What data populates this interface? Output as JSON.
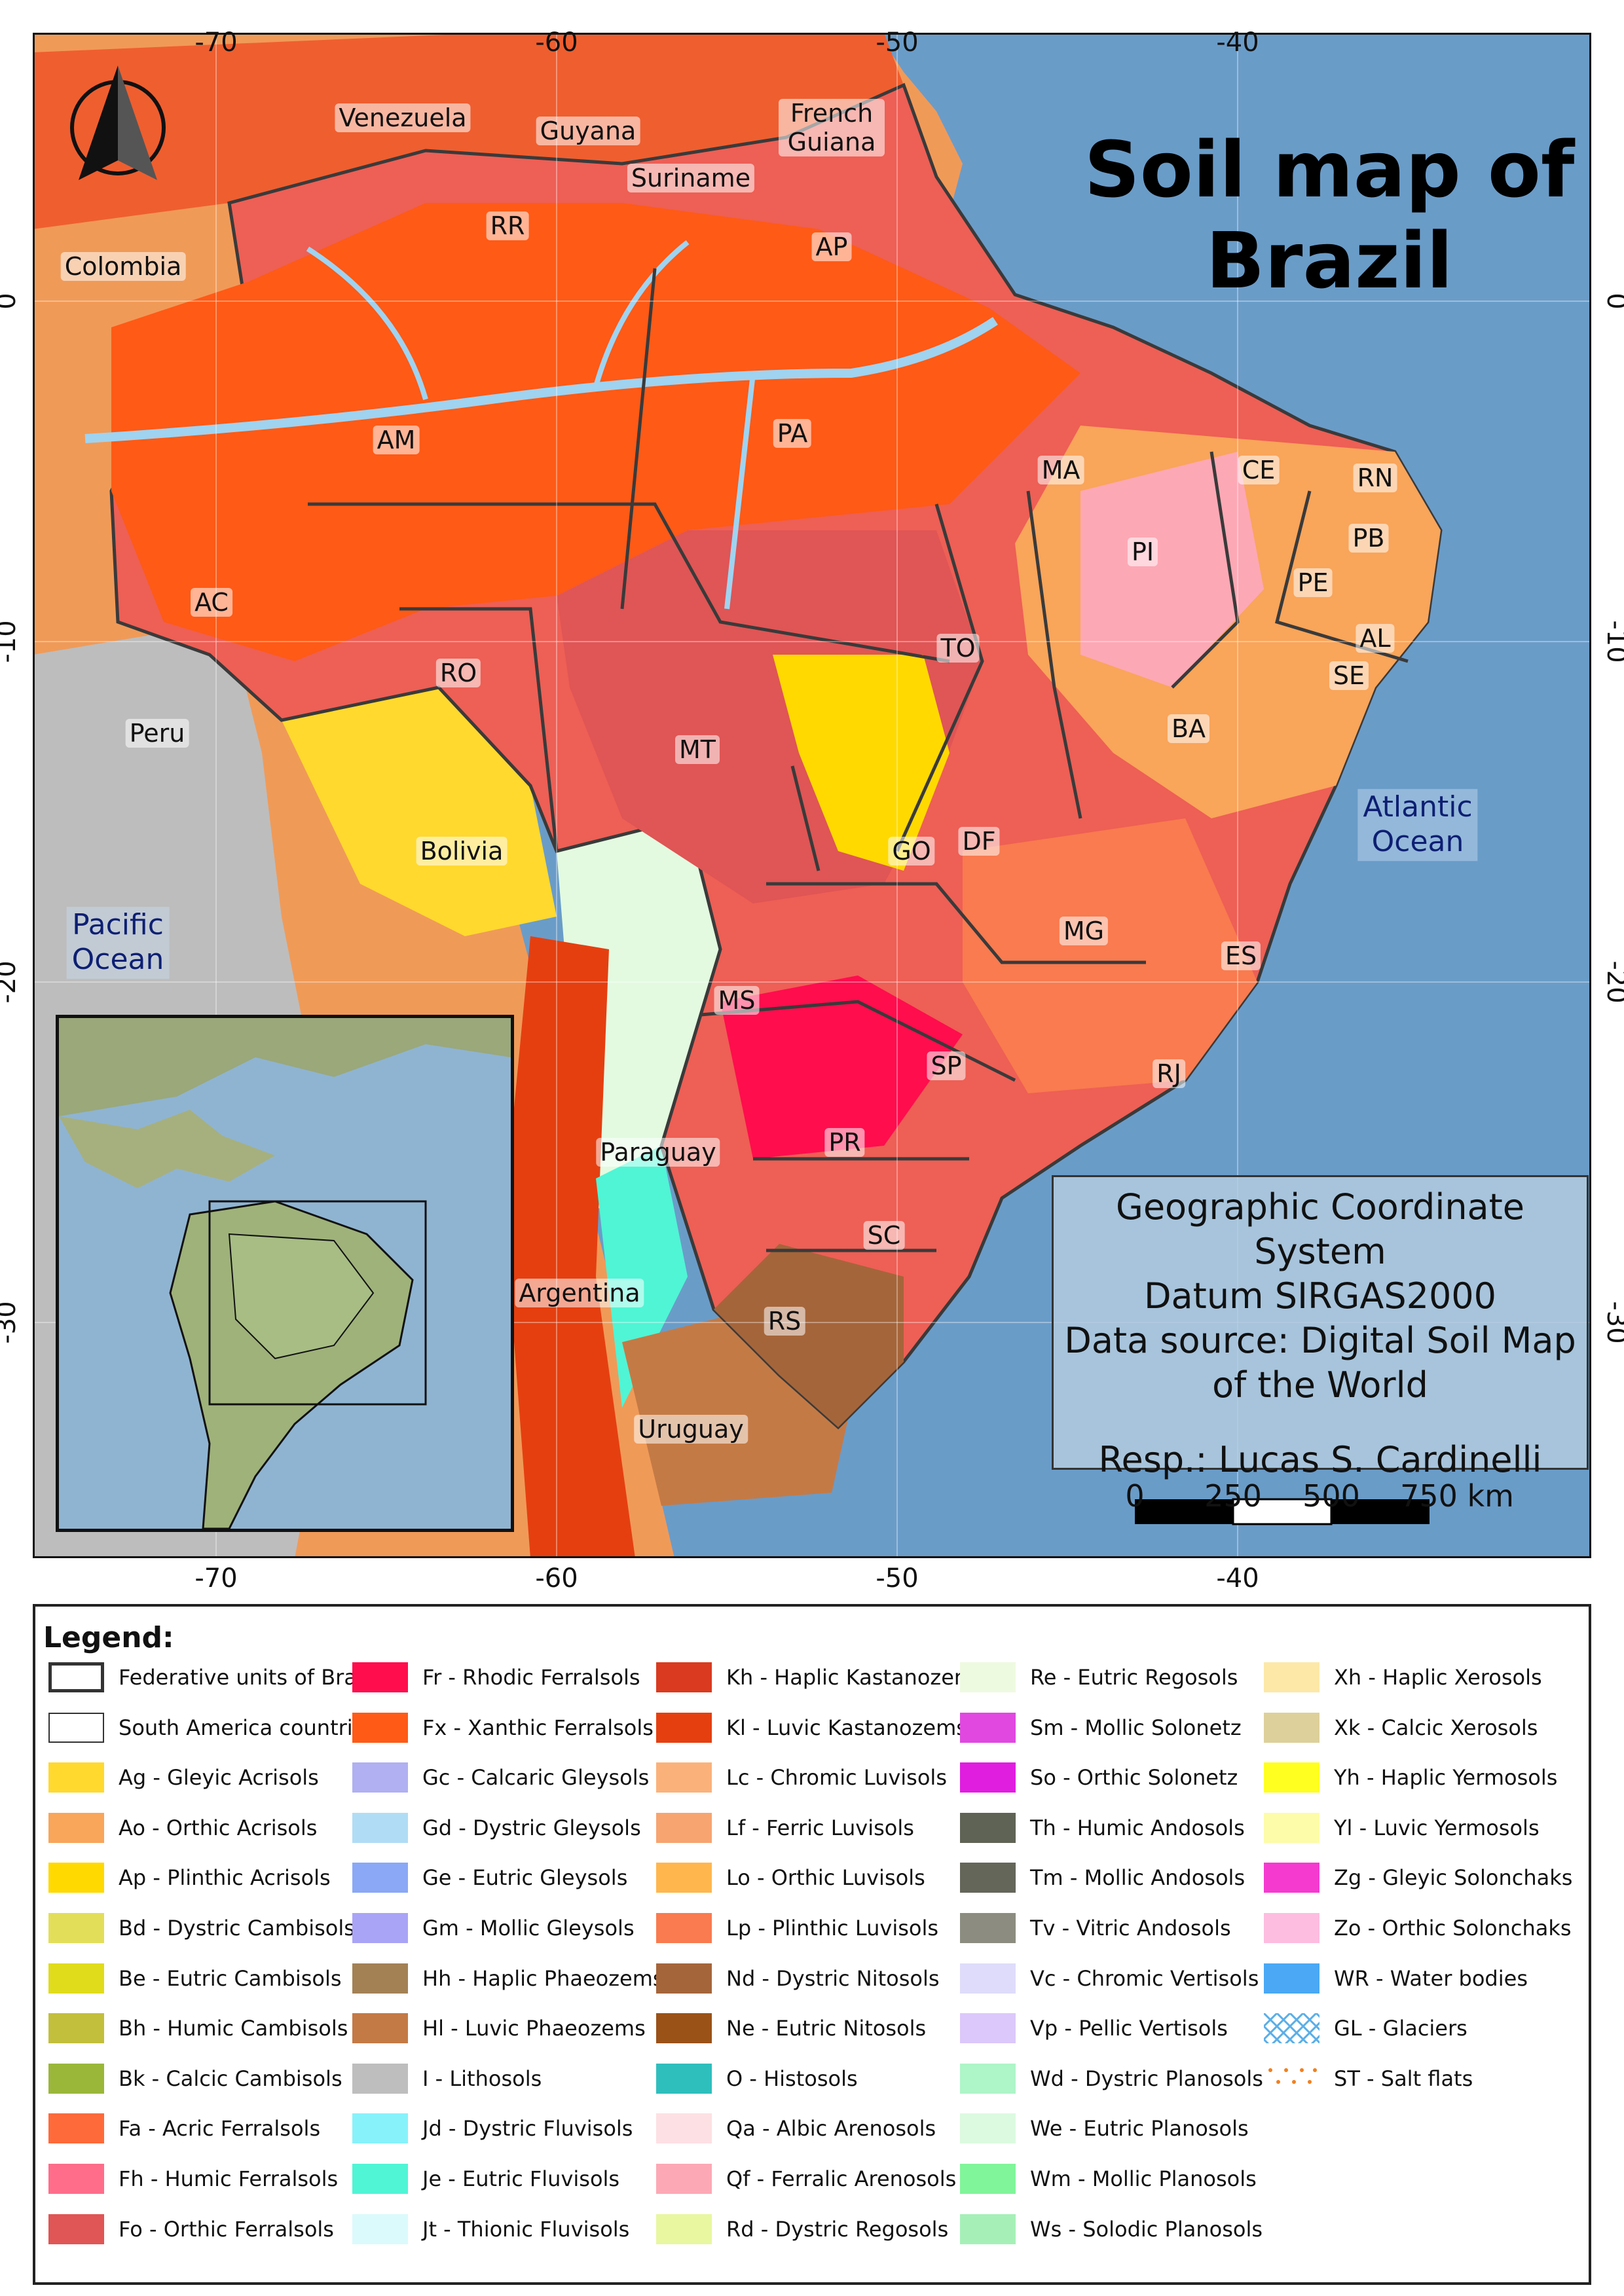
{
  "map": {
    "title_line1": "Soil map of",
    "title_line2": "Brazil",
    "lon_ticks": [
      "-70",
      "-60",
      "-50",
      "-40"
    ],
    "lat_ticks": [
      "0",
      "-10",
      "-20",
      "-30"
    ],
    "countries": [
      "Venezuela",
      "Guyana",
      "Suriname",
      "French Guiana",
      "Colombia",
      "Peru",
      "Bolivia",
      "Paraguay",
      "Argentina",
      "Uruguay"
    ],
    "states": [
      "RR",
      "AP",
      "AM",
      "PA",
      "MA",
      "CE",
      "RN",
      "PB",
      "PI",
      "PE",
      "AL",
      "SE",
      "AC",
      "RO",
      "TO",
      "MT",
      "BA",
      "GO",
      "DF",
      "MG",
      "ES",
      "MS",
      "SP",
      "RJ",
      "PR",
      "SC",
      "RS"
    ],
    "ocean_atlantic": [
      "Atlantic",
      "Ocean"
    ],
    "ocean_pacific": [
      "Pacific",
      "Ocean"
    ],
    "info": {
      "line1": "Geographic Coordinate System",
      "line2": "Datum SIRGAS2000",
      "line3": "Data source: Digital Soil Map",
      "line4": "of the World",
      "line5": "Resp.: Lucas S. Cardinelli"
    },
    "scale_labels": [
      "0",
      "250",
      "500",
      "750 km"
    ],
    "colors": {
      "ocean": "#6a9cc8",
      "ferralsol": "#f2611d",
      "land_other": "#f0a060",
      "border": "#3a3a3a"
    }
  },
  "legend": {
    "title": "Legend:",
    "columns": [
      [
        {
          "label": "Federative units of Brazil",
          "color": "#ffffff",
          "kind": "outline-thick"
        },
        {
          "label": "South America countries",
          "color": "#ffffff",
          "kind": "outline-thin"
        },
        {
          "label": "Ag - Gleyic Acrisols",
          "color": "#ffd92e"
        },
        {
          "label": "Ao - Orthic Acrisols",
          "color": "#f9a55a"
        },
        {
          "label": "Ap - Plinthic Acrisols",
          "color": "#ffd900"
        },
        {
          "label": "Bd - Dystric Cambisols",
          "color": "#e3de5a"
        },
        {
          "label": "Be - Eutric Cambisols",
          "color": "#e0dc1c"
        },
        {
          "label": "Bh - Humic Cambisols",
          "color": "#c2bf3c"
        },
        {
          "label": "Bk - Calcic Cambisols",
          "color": "#9ab73a"
        },
        {
          "label": "Fa - Acric Ferralsols",
          "color": "#ff6a3a"
        },
        {
          "label": "Fh - Humic Ferralsols",
          "color": "#ff6d8a"
        },
        {
          "label": "Fo - Orthic Ferralsols",
          "color": "#e05555"
        }
      ],
      [
        {
          "label": "Fr - Rhodic Ferralsols",
          "color": "#ff0d4d"
        },
        {
          "label": "Fx - Xanthic Ferralsols",
          "color": "#ff5a16"
        },
        {
          "label": "Gc - Calcaric Gleysols",
          "color": "#b0b0f2"
        },
        {
          "label": "Gd - Dystric Gleysols",
          "color": "#b0ddf5"
        },
        {
          "label": "Ge - Eutric Gleysols",
          "color": "#8aa8f5"
        },
        {
          "label": "Gm - Mollic Gleysols",
          "color": "#aaa4f7"
        },
        {
          "label": "Hh - Haplic Phaeozems",
          "color": "#a38155"
        },
        {
          "label": "Hl - Luvic Phaeozems",
          "color": "#c47a45"
        },
        {
          "label": "I - Lithosols",
          "color": "#bebebe"
        },
        {
          "label": "Jd - Dystric Fluvisols",
          "color": "#88f2fa"
        },
        {
          "label": "Je - Eutric Fluvisols",
          "color": "#4ff5d5"
        },
        {
          "label": "Jt - Thionic Fluvisols",
          "color": "#dbfafc"
        }
      ],
      [
        {
          "label": "Kh - Haplic Kastanozems",
          "color": "#da3a1f"
        },
        {
          "label": "Kl - Luvic Kastanozems",
          "color": "#e53f10"
        },
        {
          "label": "Lc - Chromic Luvisols",
          "color": "#fbb27a"
        },
        {
          "label": "Lf - Ferric Luvisols",
          "color": "#f7a470"
        },
        {
          "label": "Lo - Orthic Luvisols",
          "color": "#ffb74d"
        },
        {
          "label": "Lp - Plinthic Luvisols",
          "color": "#f97b4f"
        },
        {
          "label": "Nd - Dystric Nitosols",
          "color": "#a5653a"
        },
        {
          "label": "Ne - Eutric Nitosols",
          "color": "#9a5217"
        },
        {
          "label": "O - Histosols",
          "color": "#2ebfbd"
        },
        {
          "label": "Qa - Albic Arenosols",
          "color": "#fde0e3"
        },
        {
          "label": "Qf - Ferralic Arenosols",
          "color": "#fda8b5"
        },
        {
          "label": "Rd - Dystric Regosols",
          "color": "#e8f7a0"
        }
      ],
      [
        {
          "label": "Re - Eutric Regosols",
          "color": "#eefae0"
        },
        {
          "label": "Sm - Mollic Solonetz",
          "color": "#e048e0"
        },
        {
          "label": "So - Orthic Solonetz",
          "color": "#e01ee0"
        },
        {
          "label": "Th - Humic Andosols",
          "color": "#5f6355"
        },
        {
          "label": "Tm - Mollic Andosols",
          "color": "#64665a"
        },
        {
          "label": "Tv - Vitric Andosols",
          "color": "#8c8d80"
        },
        {
          "label": "Vc - Chromic Vertisols",
          "color": "#dedcfa"
        },
        {
          "label": "Vp - Pellic Vertisols",
          "color": "#dcc8fa"
        },
        {
          "label": "Wd - Dystric Planosols",
          "color": "#aef5c8"
        },
        {
          "label": "We - Eutric Planosols",
          "color": "#dcfae0"
        },
        {
          "label": "Wm - Mollic Planosols",
          "color": "#80f59a"
        },
        {
          "label": "Ws - Solodic Planosols",
          "color": "#a6f0b8"
        }
      ],
      [
        {
          "label": "Xh - Haplic Xerosols",
          "color": "#fde8a8"
        },
        {
          "label": "Xk - Calcic Xerosols",
          "color": "#ddd09a"
        },
        {
          "label": "Yh - Haplic Yermosols",
          "color": "#ffff20"
        },
        {
          "label": "Yl - Luvic Yermosols",
          "color": "#fdfca8"
        },
        {
          "label": "Zg - Gleyic Solonchaks",
          "color": "#f53ad0"
        },
        {
          "label": "Zo - Orthic Solonchaks",
          "color": "#fdbde0"
        },
        {
          "label": "WR - Water bodies",
          "color": "#4aa8f5"
        },
        {
          "label": "GL - Glaciers",
          "color": "#5aaee8",
          "kind": "hatch"
        },
        {
          "label": "ST - Salt flats",
          "color": "#f08020",
          "kind": "dots"
        }
      ]
    ]
  }
}
